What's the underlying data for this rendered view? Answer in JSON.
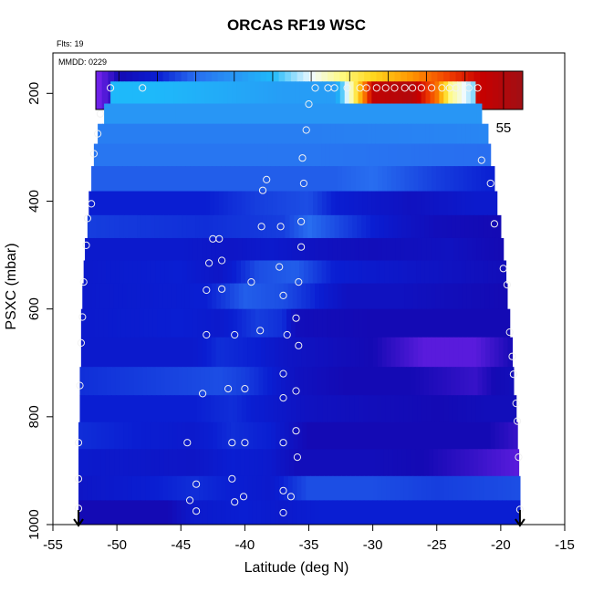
{
  "chart_data": {
    "type": "heatmap",
    "title": "ORCAS RF19 WSC",
    "flights_note": "Flts: 19",
    "date_note": "MMDD: 0229",
    "xlabel": "Latitude (deg N)",
    "ylabel": "PSXC (mbar)",
    "xlim": [
      -55,
      -15
    ],
    "ylim": [
      1000,
      125
    ],
    "x_ticks": [
      -55,
      -50,
      -45,
      -40,
      -35,
      -30,
      -25,
      -20,
      -15
    ],
    "y_ticks": [
      200,
      400,
      600,
      800,
      1000
    ],
    "colorbar": {
      "range": [
        2,
        57.5
      ],
      "ticks": [
        5,
        10,
        15,
        20,
        25,
        30,
        35,
        40,
        45,
        50,
        55
      ]
    },
    "arrow_markers": [
      -53,
      -18.5
    ],
    "bands": [
      {
        "p": 200,
        "lo": -50.5,
        "hi": -22,
        "vals": [
          [
            -50.5,
            25
          ],
          [
            -47,
            25
          ],
          [
            -42,
            23
          ],
          [
            -37,
            21
          ],
          [
            -33,
            21
          ],
          [
            -31.5,
            34
          ],
          [
            -30,
            53
          ],
          [
            -27,
            55
          ],
          [
            -25,
            45
          ],
          [
            -24,
            34
          ],
          [
            -22,
            27
          ]
        ]
      },
      {
        "p": 238,
        "lo": -51,
        "hi": -21.5,
        "vals": [
          [
            -51,
            20
          ],
          [
            -40,
            20
          ],
          [
            -30,
            20
          ],
          [
            -21.5,
            20
          ]
        ]
      },
      {
        "p": 275,
        "lo": -51.5,
        "hi": -21,
        "vals": [
          [
            -51.5,
            17
          ],
          [
            -35,
            17
          ],
          [
            -21,
            18
          ]
        ]
      },
      {
        "p": 312,
        "lo": -51.8,
        "hi": -20.8,
        "vals": [
          [
            -51.8,
            16
          ],
          [
            -35,
            16
          ],
          [
            -21,
            15
          ]
        ]
      },
      {
        "p": 358,
        "lo": -52,
        "hi": -20.5,
        "vals": [
          [
            -52,
            14
          ],
          [
            -40,
            14
          ],
          [
            -33,
            14
          ],
          [
            -30,
            15
          ],
          [
            -25,
            12
          ],
          [
            -20.5,
            10
          ]
        ]
      },
      {
        "p": 405,
        "lo": -52.2,
        "hi": -20.3,
        "vals": [
          [
            -52.2,
            10
          ],
          [
            -43,
            10
          ],
          [
            -39,
            12
          ],
          [
            -35,
            13
          ],
          [
            -33,
            10
          ],
          [
            -27,
            7
          ],
          [
            -22,
            9
          ],
          [
            -20.3,
            9
          ]
        ]
      },
      {
        "p": 447,
        "lo": -52.3,
        "hi": -20,
        "vals": [
          [
            -52.3,
            12
          ],
          [
            -43,
            11
          ],
          [
            -37,
            12
          ],
          [
            -35,
            15
          ],
          [
            -32,
            12
          ],
          [
            -28,
            8
          ],
          [
            -25,
            6
          ],
          [
            -20,
            5
          ]
        ]
      },
      {
        "p": 490,
        "lo": -52.5,
        "hi": -19.8,
        "vals": [
          [
            -52.5,
            9
          ],
          [
            -45,
            9
          ],
          [
            -41,
            8
          ],
          [
            -38,
            9
          ],
          [
            -34,
            7
          ],
          [
            -30,
            6
          ],
          [
            -24,
            7
          ],
          [
            -20,
            5
          ]
        ]
      },
      {
        "p": 530,
        "lo": -52.6,
        "hi": -19.6,
        "vals": [
          [
            -52.6,
            9
          ],
          [
            -45,
            10
          ],
          [
            -42,
            8
          ],
          [
            -39,
            13
          ],
          [
            -36,
            14
          ],
          [
            -33,
            10
          ],
          [
            -27,
            8
          ],
          [
            -20,
            6
          ]
        ]
      },
      {
        "p": 575,
        "lo": -52.7,
        "hi": -19.5,
        "vals": [
          [
            -52.7,
            9
          ],
          [
            -43,
            10
          ],
          [
            -40,
            14
          ],
          [
            -37,
            13
          ],
          [
            -35,
            11
          ],
          [
            -32,
            7
          ],
          [
            -28,
            7
          ],
          [
            -24,
            6
          ],
          [
            -19.5,
            5
          ]
        ]
      },
      {
        "p": 625,
        "lo": -52.8,
        "hi": -19.3,
        "vals": [
          [
            -52.8,
            9
          ],
          [
            -45,
            10
          ],
          [
            -42,
            9
          ],
          [
            -39,
            12
          ],
          [
            -37,
            11
          ],
          [
            -36,
            6
          ],
          [
            -30,
            5
          ],
          [
            -22,
            5
          ],
          [
            -19.3,
            5
          ]
        ]
      },
      {
        "p": 680,
        "lo": -52.8,
        "hi": -19.1,
        "vals": [
          [
            -52.8,
            9
          ],
          [
            -44,
            9
          ],
          [
            -42,
            11
          ],
          [
            -39,
            10
          ],
          [
            -37,
            8
          ],
          [
            -35,
            7
          ],
          [
            -30,
            5
          ],
          [
            -26,
            3
          ],
          [
            -22,
            3
          ],
          [
            -19,
            5
          ]
        ]
      },
      {
        "p": 735,
        "lo": -52.9,
        "hi": -19,
        "vals": [
          [
            -52.9,
            11
          ],
          [
            -42,
            13
          ],
          [
            -40,
            12
          ],
          [
            -38,
            10
          ],
          [
            -36,
            7
          ],
          [
            -32,
            5
          ],
          [
            -27,
            5
          ],
          [
            -22,
            4
          ],
          [
            -19,
            6
          ]
        ]
      },
      {
        "p": 785,
        "lo": -52.9,
        "hi": -18.8,
        "vals": [
          [
            -52.9,
            10
          ],
          [
            -44,
            10
          ],
          [
            -41,
            11
          ],
          [
            -38,
            9
          ],
          [
            -35,
            7
          ],
          [
            -30,
            6
          ],
          [
            -25,
            5
          ],
          [
            -21,
            6
          ],
          [
            -18.8,
            6
          ]
        ]
      },
      {
        "p": 835,
        "lo": -53,
        "hi": -18.7,
        "vals": [
          [
            -53,
            11
          ],
          [
            -44,
            9
          ],
          [
            -41,
            11
          ],
          [
            -38,
            10
          ],
          [
            -35,
            5
          ],
          [
            -30,
            5
          ],
          [
            -25,
            5
          ],
          [
            -21,
            5
          ],
          [
            -18.7,
            4
          ]
        ]
      },
      {
        "p": 885,
        "lo": -53,
        "hi": -18.6,
        "vals": [
          [
            -53,
            9
          ],
          [
            -44,
            8
          ],
          [
            -41,
            10
          ],
          [
            -38,
            9
          ],
          [
            -36,
            6
          ],
          [
            -30,
            6
          ],
          [
            -26,
            5
          ],
          [
            -22,
            4
          ],
          [
            -18.6,
            3
          ]
        ]
      },
      {
        "p": 935,
        "lo": -53,
        "hi": -18.5,
        "vals": [
          [
            -53,
            8
          ],
          [
            -44,
            11
          ],
          [
            -41,
            10
          ],
          [
            -38,
            9
          ],
          [
            -35,
            13
          ],
          [
            -30,
            13
          ],
          [
            -25,
            12
          ],
          [
            -18.5,
            13
          ]
        ]
      },
      {
        "p": 975,
        "lo": -53,
        "hi": -18.5,
        "vals": [
          [
            -53,
            5
          ],
          [
            -46,
            5
          ],
          [
            -44,
            9
          ],
          [
            -40,
            10
          ],
          [
            -37,
            9
          ],
          [
            -34,
            10
          ],
          [
            -28,
            10
          ],
          [
            -22,
            10
          ],
          [
            -18.5,
            10
          ]
        ]
      }
    ],
    "points": [
      [
        -50.5,
        190
      ],
      [
        -48,
        190
      ],
      [
        -34.5,
        190
      ],
      [
        -33.5,
        190
      ],
      [
        -33,
        190
      ],
      [
        -32,
        190
      ],
      [
        -31,
        190
      ],
      [
        -30.5,
        190
      ],
      [
        -29.7,
        190
      ],
      [
        -29,
        190
      ],
      [
        -28.3,
        190
      ],
      [
        -27.5,
        190
      ],
      [
        -26.9,
        190
      ],
      [
        -26.2,
        190
      ],
      [
        -25.4,
        190
      ],
      [
        -24.6,
        190
      ],
      [
        -24,
        190
      ],
      [
        -23.5,
        190
      ],
      [
        -22.5,
        190
      ],
      [
        -21.8,
        190
      ],
      [
        -35,
        220
      ],
      [
        -51.3,
        238
      ],
      [
        -35.2,
        268
      ],
      [
        -51.5,
        275
      ],
      [
        -51.8,
        312
      ],
      [
        -35.5,
        320
      ],
      [
        -21.5,
        324
      ],
      [
        -38.3,
        360
      ],
      [
        -35.4,
        367
      ],
      [
        -20.8,
        367
      ],
      [
        -38.6,
        380
      ],
      [
        -52,
        405
      ],
      [
        -20.5,
        442
      ],
      [
        -52.3,
        432
      ],
      [
        -38.7,
        447
      ],
      [
        -37.2,
        447
      ],
      [
        -35.6,
        438
      ],
      [
        -42.5,
        470
      ],
      [
        -42,
        470
      ],
      [
        -35.6,
        485
      ],
      [
        -52.4,
        482
      ],
      [
        -41.8,
        510
      ],
      [
        -42.8,
        515
      ],
      [
        -37.3,
        522
      ],
      [
        -19.8,
        525
      ],
      [
        -52.6,
        550
      ],
      [
        -39.5,
        550
      ],
      [
        -35.8,
        550
      ],
      [
        -19.5,
        555
      ],
      [
        -43,
        565
      ],
      [
        -41.8,
        563
      ],
      [
        -37,
        575
      ],
      [
        -52.7,
        615
      ],
      [
        -36,
        617
      ],
      [
        -19.3,
        643
      ],
      [
        -38.8,
        640
      ],
      [
        -36.7,
        648
      ],
      [
        -43,
        648
      ],
      [
        -40.8,
        648
      ],
      [
        -35.8,
        668
      ],
      [
        -52.8,
        663
      ],
      [
        -19.1,
        688
      ],
      [
        -37,
        720
      ],
      [
        -19,
        721
      ],
      [
        -52.9,
        742
      ],
      [
        -41.3,
        748
      ],
      [
        -40,
        748
      ],
      [
        -36,
        752
      ],
      [
        -43.3,
        757
      ],
      [
        -37,
        765
      ],
      [
        -18.8,
        775
      ],
      [
        -18.7,
        808
      ],
      [
        -36,
        826
      ],
      [
        -53,
        848
      ],
      [
        -44.5,
        848
      ],
      [
        -41,
        848
      ],
      [
        -40,
        848
      ],
      [
        -37,
        848
      ],
      [
        -35.9,
        875
      ],
      [
        -18.6,
        875
      ],
      [
        -53,
        915
      ],
      [
        -41,
        915
      ],
      [
        -43.8,
        925
      ],
      [
        -37,
        937
      ],
      [
        -36.4,
        948
      ],
      [
        -44.3,
        955
      ],
      [
        -40.8,
        958
      ],
      [
        -40.1,
        948
      ],
      [
        -43.8,
        975
      ],
      [
        -53,
        970
      ],
      [
        -37,
        978
      ],
      [
        -18.5,
        972
      ]
    ]
  }
}
